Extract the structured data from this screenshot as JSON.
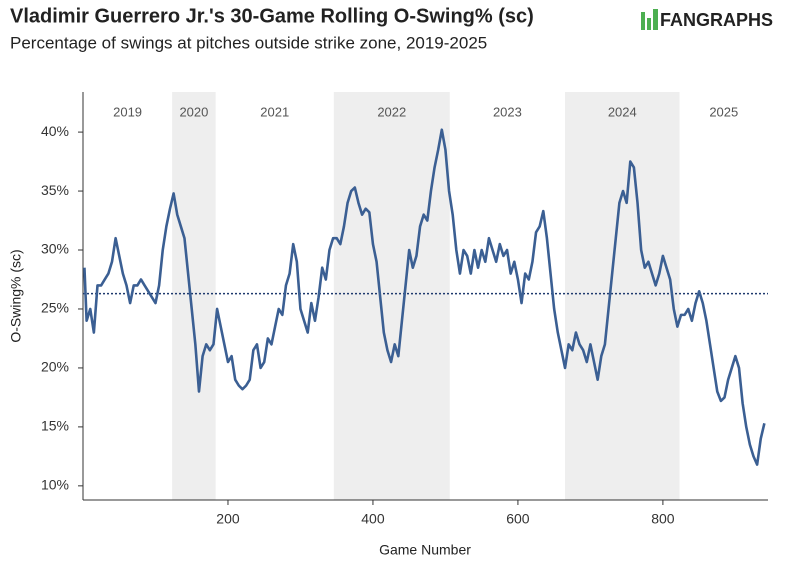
{
  "chart_data": {
    "type": "line",
    "title": "Vladimir Guerrero Jr.'s 30-Game Rolling O-Swing% (sc)",
    "subtitle": "Percentage of swings at pitches outside strike zone, 2019-2025",
    "logo": "FANGRAPHS",
    "xlabel": "Game Number",
    "ylabel": "O-Swing% (sc)",
    "xlim": [
      0,
      945
    ],
    "ylim": [
      8.8,
      43.4
    ],
    "xticks": [
      200,
      400,
      600,
      800
    ],
    "yticks": [
      {
        "value": 10,
        "label": "10%"
      },
      {
        "value": 15,
        "label": "15%"
      },
      {
        "value": 20,
        "label": "20%"
      },
      {
        "value": 25,
        "label": "25%"
      },
      {
        "value": 30,
        "label": "30%"
      },
      {
        "value": 35,
        "label": "35%"
      },
      {
        "value": 40,
        "label": "40%"
      }
    ],
    "average": 26.3,
    "average_color": "#1f3a6e",
    "band_color": "#eeeeee",
    "seasons": [
      {
        "label": "2019",
        "start": 0,
        "end": 123,
        "shaded": false
      },
      {
        "label": "2020",
        "start": 123,
        "end": 183,
        "shaded": true
      },
      {
        "label": "2021",
        "start": 183,
        "end": 346,
        "shaded": false
      },
      {
        "label": "2022",
        "start": 346,
        "end": 506,
        "shaded": true
      },
      {
        "label": "2023",
        "start": 506,
        "end": 665,
        "shaded": false
      },
      {
        "label": "2024",
        "start": 665,
        "end": 823,
        "shaded": true
      },
      {
        "label": "2025",
        "start": 823,
        "end": 945,
        "shaded": false
      }
    ],
    "series": [
      {
        "color": "#3b5f93",
        "x": [
          2,
          5,
          10,
          15,
          20,
          25,
          30,
          35,
          40,
          45,
          50,
          55,
          60,
          65,
          70,
          75,
          80,
          85,
          90,
          95,
          100,
          105,
          110,
          115,
          120,
          125,
          130,
          135,
          140,
          145,
          150,
          155,
          160,
          165,
          170,
          175,
          180,
          185,
          190,
          195,
          200,
          205,
          210,
          215,
          220,
          225,
          230,
          235,
          240,
          245,
          250,
          255,
          260,
          265,
          270,
          275,
          280,
          285,
          290,
          295,
          300,
          305,
          310,
          315,
          320,
          325,
          330,
          335,
          340,
          345,
          350,
          355,
          360,
          365,
          370,
          375,
          380,
          385,
          390,
          395,
          400,
          405,
          410,
          415,
          420,
          425,
          430,
          435,
          440,
          445,
          450,
          455,
          460,
          465,
          470,
          475,
          480,
          485,
          490,
          495,
          500,
          505,
          510,
          515,
          520,
          525,
          530,
          535,
          540,
          545,
          550,
          555,
          560,
          565,
          570,
          575,
          580,
          585,
          590,
          595,
          600,
          605,
          610,
          615,
          620,
          625,
          630,
          635,
          640,
          645,
          650,
          655,
          660,
          665,
          670,
          675,
          680,
          685,
          690,
          695,
          700,
          705,
          710,
          715,
          720,
          725,
          730,
          735,
          740,
          745,
          750,
          755,
          760,
          765,
          770,
          775,
          780,
          785,
          790,
          795,
          800,
          805,
          810,
          815,
          820,
          825,
          830,
          835,
          840,
          845,
          850,
          855,
          860,
          865,
          870,
          875,
          880,
          885,
          890,
          895,
          900,
          905,
          910,
          915,
          920,
          925,
          930,
          935,
          940
        ],
        "values": [
          28.5,
          24,
          25,
          23,
          27,
          27,
          27.5,
          28,
          29,
          31,
          29.5,
          28,
          27,
          25.5,
          27,
          27,
          27.5,
          27,
          26.5,
          26,
          25.5,
          27,
          30,
          32,
          33.5,
          34.8,
          33,
          32,
          31,
          28,
          25,
          22,
          18,
          21,
          22,
          21.5,
          22,
          25,
          23.5,
          22,
          20.5,
          21,
          19,
          18.5,
          18.2,
          18.5,
          19,
          21.5,
          22,
          20,
          20.5,
          22.5,
          22,
          23.5,
          25,
          24.5,
          27,
          28,
          30.5,
          29,
          25,
          24,
          23,
          25.5,
          24,
          26,
          28.5,
          27.5,
          30,
          31,
          31,
          30.5,
          32,
          34,
          35,
          35.3,
          34,
          33,
          33.5,
          33.2,
          30.5,
          29,
          26,
          23,
          21.5,
          20.5,
          22,
          21,
          24,
          27,
          30,
          28.5,
          29.5,
          32,
          33,
          32.5,
          35,
          37,
          38.5,
          40.2,
          38.5,
          35,
          33,
          30,
          28,
          30,
          29.5,
          28,
          30,
          28.5,
          30,
          29,
          31,
          30,
          29,
          30.5,
          29.5,
          30,
          28,
          29,
          27.5,
          25.5,
          28,
          27.5,
          29,
          31.5,
          32,
          33.3,
          31,
          28,
          25,
          23,
          21.5,
          20,
          22,
          21.5,
          23,
          22,
          21.5,
          20.5,
          22,
          20.5,
          19,
          21,
          22,
          25,
          28,
          31,
          34,
          35,
          34,
          37.5,
          37,
          34,
          30,
          28.5,
          29,
          28,
          27,
          28,
          29.5,
          28.5,
          27.5,
          25,
          23.5,
          24.5,
          24.5,
          25,
          24,
          25.5,
          26.5,
          25.5,
          24,
          22,
          20,
          18,
          17.2,
          17.5,
          19,
          20,
          21,
          20,
          17,
          15,
          13.5,
          12.5,
          11.8,
          14,
          15.3
        ]
      }
    ]
  }
}
